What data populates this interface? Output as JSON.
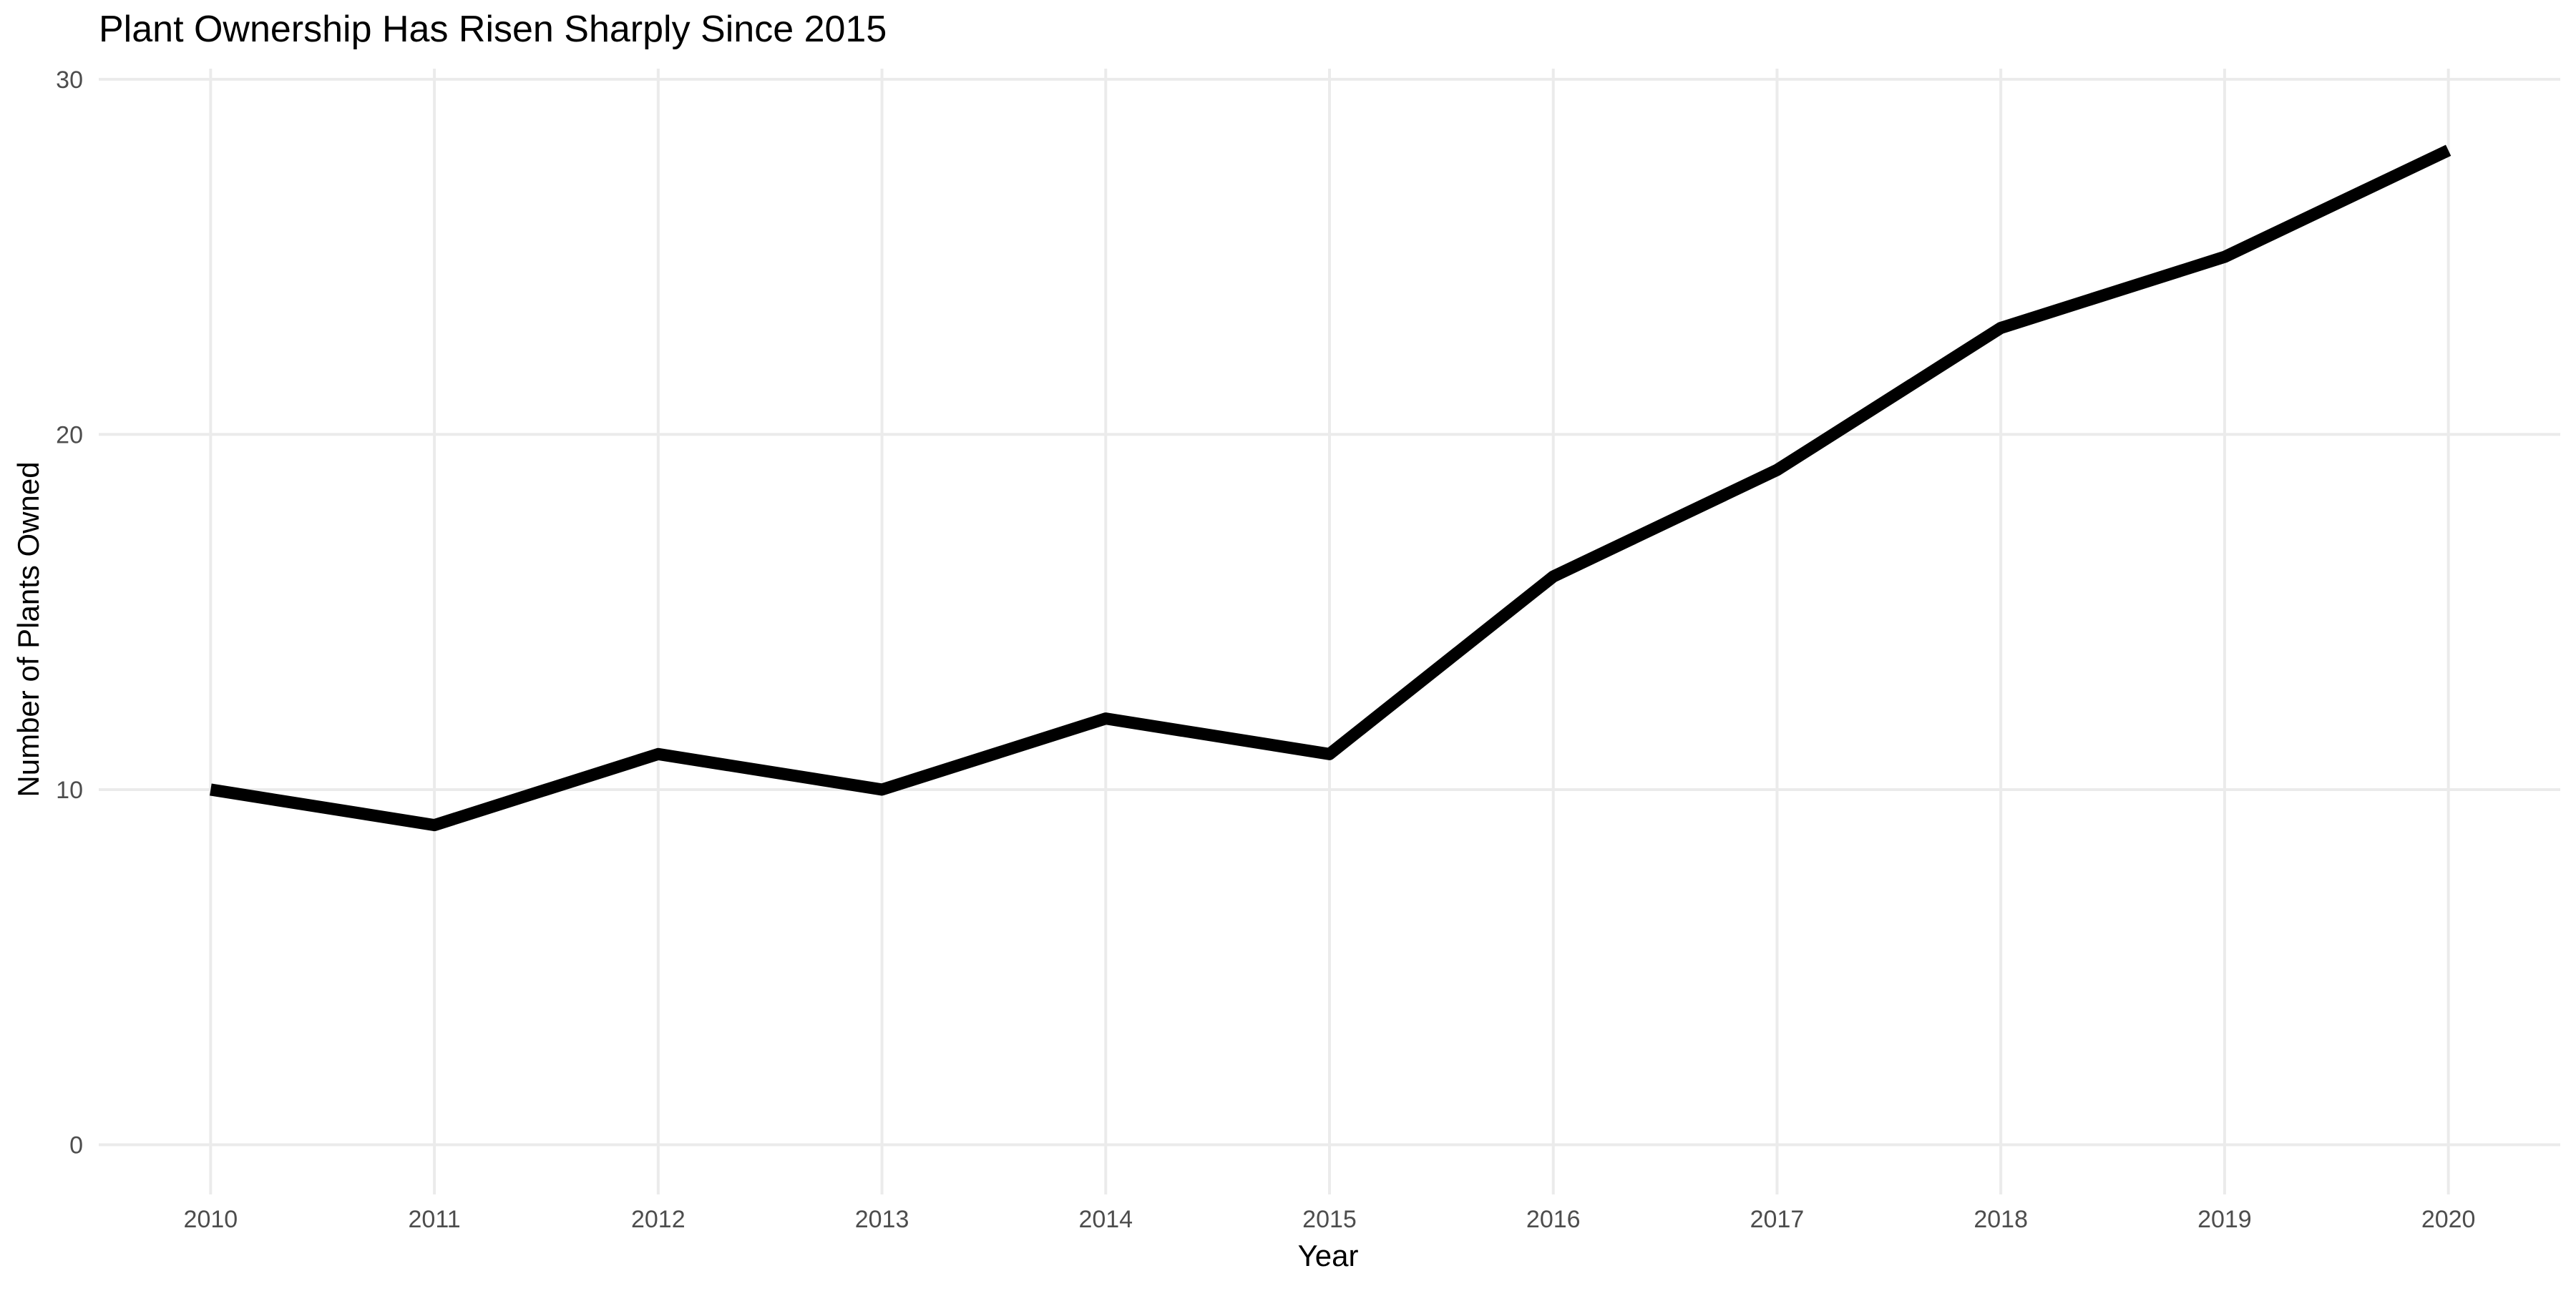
{
  "chart_data": {
    "type": "line",
    "title": "Plant Ownership Has Risen Sharply Since 2015",
    "xlabel": "Year",
    "ylabel": "Number of Plants Owned",
    "x": [
      2010,
      2011,
      2012,
      2013,
      2014,
      2015,
      2016,
      2017,
      2018,
      2019,
      2020
    ],
    "series": [
      {
        "values": [
          10,
          9,
          11,
          10,
          12,
          11,
          16,
          19,
          23,
          25,
          28
        ]
      }
    ],
    "xlim": [
      2009.5,
      2020.5
    ],
    "ylim": [
      -1.4,
      30.3
    ],
    "xticks": [
      2010,
      2011,
      2012,
      2013,
      2014,
      2015,
      2016,
      2017,
      2018,
      2019,
      2020
    ],
    "yticks": [
      0,
      10,
      20,
      30
    ],
    "grid": true,
    "legend": "none",
    "colors": {
      "line": "#000000",
      "grid": "#ebebeb",
      "text": "#222222",
      "tick_text": "#4d4d4d"
    }
  }
}
